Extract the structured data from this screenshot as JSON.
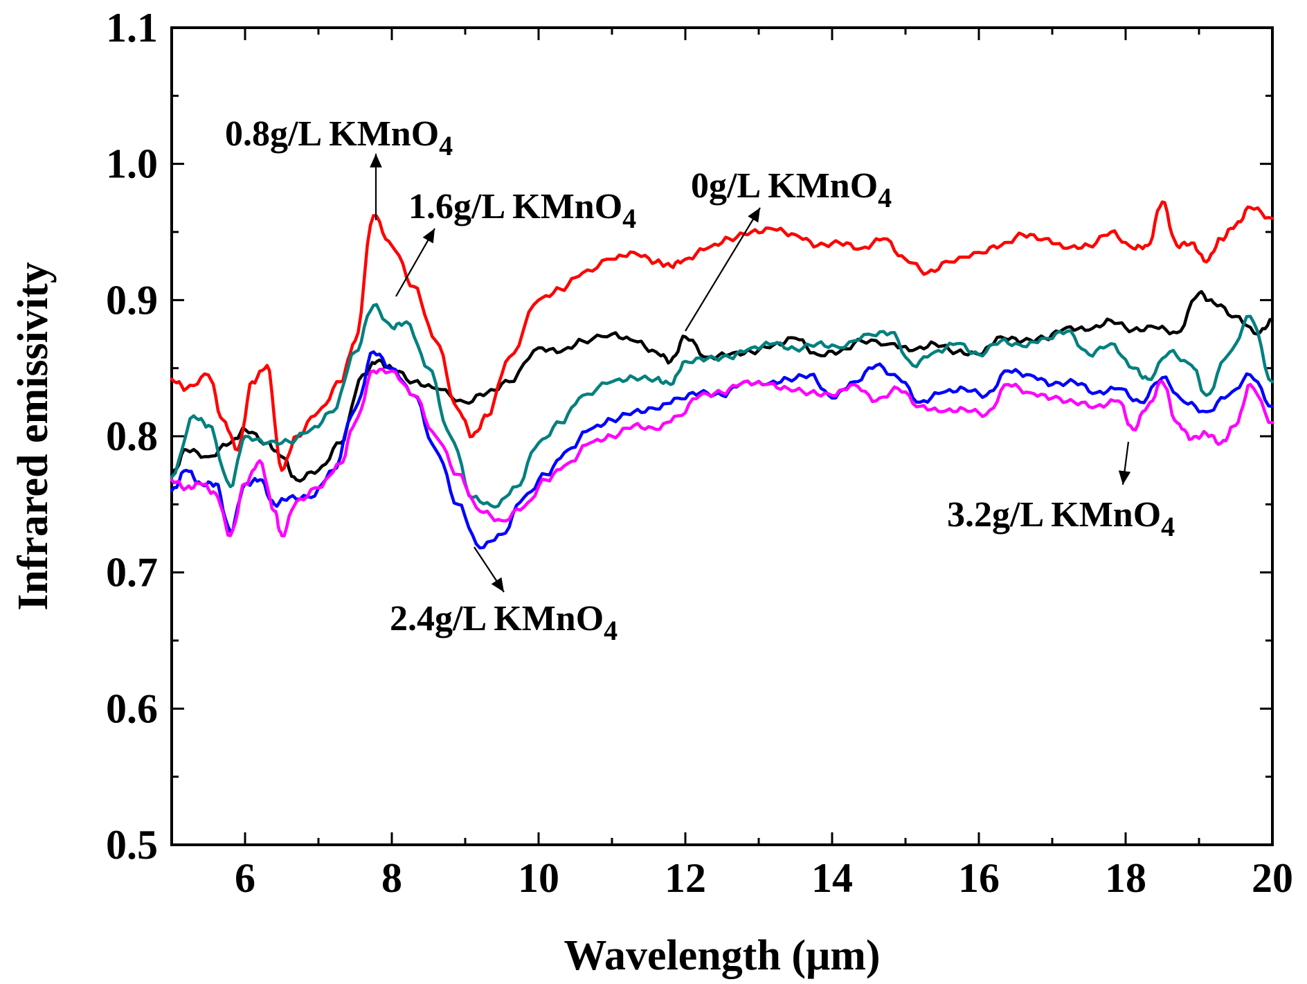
{
  "chart_data": {
    "type": "line",
    "xlabel": "Wavelength (μm)",
    "ylabel": "Infrared emissivity",
    "xlim": [
      5,
      20
    ],
    "ylim": [
      0.5,
      1.1
    ],
    "xticks": [
      6,
      8,
      10,
      12,
      14,
      16,
      18,
      20
    ],
    "xtick_labels": [
      "6",
      "8",
      "10",
      "12",
      "14",
      "16",
      "18",
      "20"
    ],
    "yticks": [
      0.5,
      0.6,
      0.7,
      0.8,
      0.9,
      1.0,
      1.1
    ],
    "ytick_labels": [
      "0.5",
      "0.6",
      "0.7",
      "0.8",
      "0.9",
      "1.0",
      "1.1"
    ],
    "legend": "annotations with arrows",
    "series": [
      {
        "name": "0g/L KMnO4",
        "label_main": "0g/L KMnO",
        "label_sub": "4",
        "color": "#000000",
        "x": [
          5,
          5.2,
          5.5,
          5.8,
          6.0,
          6.3,
          6.5,
          6.7,
          7.0,
          7.3,
          7.6,
          7.8,
          8.0,
          8.3,
          8.6,
          9.0,
          9.3,
          9.6,
          10.0,
          10.3,
          10.6,
          11.0,
          11.3,
          11.6,
          11.8,
          12.0,
          12.3,
          12.6,
          12.9,
          13.2,
          13.5,
          13.8,
          14.1,
          14.4,
          14.8,
          15.1,
          15.4,
          15.7,
          16.0,
          16.3,
          16.6,
          16.9,
          17.2,
          17.5,
          17.8,
          18.1,
          18.4,
          18.7,
          19.0,
          19.2,
          19.5,
          19.8,
          20.0
        ],
        "y": [
          0.772,
          0.79,
          0.785,
          0.795,
          0.805,
          0.795,
          0.785,
          0.768,
          0.775,
          0.795,
          0.845,
          0.855,
          0.85,
          0.84,
          0.835,
          0.825,
          0.832,
          0.84,
          0.865,
          0.862,
          0.87,
          0.875,
          0.87,
          0.862,
          0.855,
          0.873,
          0.858,
          0.86,
          0.862,
          0.867,
          0.872,
          0.86,
          0.862,
          0.87,
          0.868,
          0.863,
          0.868,
          0.862,
          0.86,
          0.873,
          0.87,
          0.872,
          0.88,
          0.878,
          0.885,
          0.878,
          0.88,
          0.876,
          0.905,
          0.898,
          0.888,
          0.875,
          0.885
        ]
      },
      {
        "name": "0.8g/L KMnO4",
        "label_main": "0.8g/L KMnO",
        "label_sub": "4",
        "color": "#ff0000",
        "x": [
          5,
          5.2,
          5.5,
          5.7,
          5.9,
          6.1,
          6.3,
          6.5,
          6.7,
          7.0,
          7.3,
          7.5,
          7.75,
          8.0,
          8.3,
          8.6,
          8.9,
          9.1,
          9.3,
          9.6,
          10.0,
          10.3,
          10.6,
          11.0,
          11.3,
          11.6,
          11.8,
          12.0,
          12.3,
          12.6,
          12.9,
          13.2,
          13.5,
          13.8,
          14.1,
          14.4,
          14.7,
          15.0,
          15.3,
          15.6,
          16.0,
          16.3,
          16.6,
          16.9,
          17.2,
          17.5,
          17.8,
          18.1,
          18.3,
          18.5,
          18.7,
          18.9,
          19.1,
          19.3,
          19.5,
          19.7,
          20.0
        ],
        "y": [
          0.842,
          0.835,
          0.845,
          0.812,
          0.79,
          0.84,
          0.852,
          0.775,
          0.8,
          0.818,
          0.84,
          0.87,
          0.962,
          0.94,
          0.91,
          0.87,
          0.82,
          0.8,
          0.815,
          0.858,
          0.9,
          0.908,
          0.92,
          0.93,
          0.935,
          0.928,
          0.925,
          0.93,
          0.938,
          0.945,
          0.95,
          0.952,
          0.948,
          0.94,
          0.942,
          0.938,
          0.945,
          0.93,
          0.92,
          0.928,
          0.935,
          0.94,
          0.948,
          0.945,
          0.938,
          0.94,
          0.95,
          0.938,
          0.94,
          0.972,
          0.94,
          0.942,
          0.928,
          0.945,
          0.955,
          0.968,
          0.96
        ]
      },
      {
        "name": "1.6g/L KMnO4",
        "label_main": "1.6g/L KMnO",
        "label_sub": "4",
        "color": "#00807f",
        "x": [
          5,
          5.3,
          5.5,
          5.8,
          6.0,
          6.3,
          6.6,
          6.9,
          7.2,
          7.5,
          7.75,
          8.0,
          8.2,
          8.5,
          8.8,
          9.1,
          9.4,
          9.7,
          10.0,
          10.3,
          10.6,
          11.0,
          11.3,
          11.6,
          11.8,
          12.0,
          12.3,
          12.6,
          12.9,
          13.2,
          13.5,
          13.8,
          14.1,
          14.5,
          14.8,
          15.1,
          15.4,
          15.7,
          16.0,
          16.3,
          16.6,
          16.9,
          17.2,
          17.5,
          17.8,
          18.1,
          18.3,
          18.6,
          18.9,
          19.1,
          19.4,
          19.7,
          20.0
        ],
        "y": [
          0.77,
          0.815,
          0.808,
          0.763,
          0.8,
          0.795,
          0.796,
          0.805,
          0.818,
          0.862,
          0.896,
          0.88,
          0.884,
          0.85,
          0.8,
          0.755,
          0.748,
          0.763,
          0.795,
          0.81,
          0.83,
          0.84,
          0.843,
          0.842,
          0.838,
          0.855,
          0.857,
          0.858,
          0.865,
          0.868,
          0.864,
          0.868,
          0.865,
          0.875,
          0.876,
          0.852,
          0.862,
          0.868,
          0.86,
          0.87,
          0.866,
          0.872,
          0.877,
          0.86,
          0.868,
          0.85,
          0.842,
          0.862,
          0.852,
          0.83,
          0.86,
          0.888,
          0.84
        ]
      },
      {
        "name": "2.4g/L KMnO4",
        "label_main": "2.4g/L KMnO",
        "label_sub": "4",
        "color": "#0000ff",
        "x": [
          5,
          5.2,
          5.4,
          5.6,
          5.8,
          6.0,
          6.2,
          6.4,
          6.6,
          6.9,
          7.2,
          7.5,
          7.75,
          8.0,
          8.3,
          8.6,
          8.9,
          9.2,
          9.5,
          9.8,
          10.1,
          10.4,
          10.7,
          11.0,
          11.3,
          11.6,
          11.9,
          12.2,
          12.5,
          12.8,
          13.1,
          13.4,
          13.7,
          14.0,
          14.3,
          14.6,
          14.9,
          15.2,
          15.5,
          15.8,
          16.1,
          16.4,
          16.7,
          17.0,
          17.3,
          17.6,
          17.9,
          18.2,
          18.5,
          18.8,
          19.1,
          19.4,
          19.7,
          20.0
        ],
        "y": [
          0.76,
          0.775,
          0.765,
          0.765,
          0.73,
          0.765,
          0.768,
          0.75,
          0.755,
          0.755,
          0.775,
          0.82,
          0.862,
          0.85,
          0.83,
          0.79,
          0.75,
          0.718,
          0.728,
          0.755,
          0.772,
          0.79,
          0.805,
          0.812,
          0.818,
          0.82,
          0.828,
          0.832,
          0.83,
          0.84,
          0.838,
          0.842,
          0.845,
          0.828,
          0.84,
          0.852,
          0.843,
          0.825,
          0.832,
          0.835,
          0.83,
          0.848,
          0.845,
          0.838,
          0.84,
          0.832,
          0.835,
          0.825,
          0.843,
          0.825,
          0.818,
          0.83,
          0.845,
          0.822
        ]
      },
      {
        "name": "3.2g/L KMnO4",
        "label_main": "3.2g/L KMnO",
        "label_sub": "4",
        "color": "#ff00ff",
        "x": [
          5,
          5.2,
          5.4,
          5.6,
          5.8,
          6.0,
          6.2,
          6.4,
          6.5,
          6.7,
          7.0,
          7.3,
          7.5,
          7.75,
          8.0,
          8.3,
          8.6,
          8.9,
          9.2,
          9.5,
          9.8,
          10.1,
          10.4,
          10.7,
          11.0,
          11.3,
          11.6,
          11.9,
          12.2,
          12.5,
          12.8,
          13.1,
          13.4,
          13.7,
          14.0,
          14.3,
          14.6,
          14.9,
          15.2,
          15.5,
          15.8,
          16.1,
          16.4,
          16.7,
          17.0,
          17.3,
          17.6,
          17.9,
          18.1,
          18.3,
          18.5,
          18.7,
          18.9,
          19.1,
          19.3,
          19.5,
          19.7,
          20.0
        ],
        "y": [
          0.768,
          0.762,
          0.765,
          0.758,
          0.727,
          0.765,
          0.782,
          0.745,
          0.727,
          0.752,
          0.762,
          0.78,
          0.81,
          0.848,
          0.848,
          0.83,
          0.8,
          0.772,
          0.745,
          0.738,
          0.748,
          0.768,
          0.78,
          0.795,
          0.8,
          0.808,
          0.805,
          0.815,
          0.83,
          0.832,
          0.84,
          0.838,
          0.835,
          0.832,
          0.83,
          0.838,
          0.826,
          0.835,
          0.822,
          0.818,
          0.82,
          0.816,
          0.838,
          0.832,
          0.828,
          0.825,
          0.822,
          0.826,
          0.805,
          0.822,
          0.84,
          0.81,
          0.798,
          0.802,
          0.795,
          0.808,
          0.838,
          0.81
        ]
      }
    ],
    "annotations": [
      {
        "series": "0.8g/L KMnO4",
        "text": "0.8g/L KMnO",
        "sub": "4"
      },
      {
        "series": "1.6g/L KMnO4",
        "text": "1.6g/L KMnO",
        "sub": "4"
      },
      {
        "series": "0g/L KMnO4",
        "text": "0g/L KMnO",
        "sub": "4"
      },
      {
        "series": "2.4g/L KMnO4",
        "text": "2.4g/L KMnO",
        "sub": "4"
      },
      {
        "series": "3.2g/L KMnO4",
        "text": "3.2g/L KMnO",
        "sub": "4"
      }
    ]
  }
}
